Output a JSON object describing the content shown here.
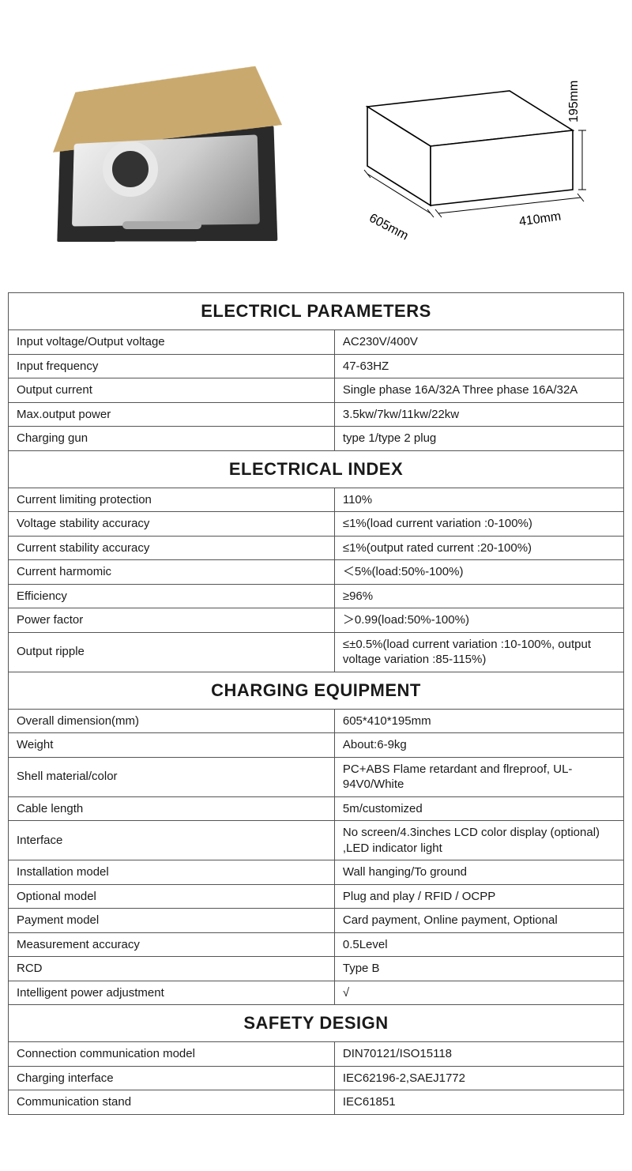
{
  "dimensions": {
    "width_label": "605mm",
    "depth_label": "410mm",
    "height_label": "195mm"
  },
  "diagram": {
    "stroke": "#000000",
    "stroke_width": 1.5,
    "fill": "#ffffff"
  },
  "sections": [
    {
      "title": "ELECTRICL PARAMETERS",
      "rows": [
        {
          "label": "Input voltage/Output voltage",
          "value": "AC230V/400V"
        },
        {
          "label": "Input frequency",
          "value": "47-63HZ"
        },
        {
          "label": "Output current",
          "value": "Single phase 16A/32A   Three phase 16A/32A"
        },
        {
          "label": "Max.output power",
          "value": "3.5kw/7kw/11kw/22kw"
        },
        {
          "label": "Charging gun",
          "value": "type 1/type 2 plug"
        }
      ]
    },
    {
      "title": "ELECTRICAL INDEX",
      "rows": [
        {
          "label": "Current limiting protection",
          "value": "110%"
        },
        {
          "label": "Voltage stability accuracy",
          "value": "≤1%(load current variation :0-100%)"
        },
        {
          "label": "Current stability accuracy",
          "value": "≤1%(output rated current :20-100%)"
        },
        {
          "label": "Current harmomic",
          "value": "＜5%(load:50%-100%)"
        },
        {
          "label": "Efficiency",
          "value": "≥96%"
        },
        {
          "label": "Power factor",
          "value": "＞0.99(load:50%-100%)"
        },
        {
          "label": "Output ripple",
          "value": "≤±0.5%(load current variation :10-100%, output voltage variation :85-115%)"
        }
      ]
    },
    {
      "title": "CHARGING EQUIPMENT",
      "rows": [
        {
          "label": "Overall dimension(mm)",
          "value": "605*410*195mm"
        },
        {
          "label": "Weight",
          "value": "About:6-9kg"
        },
        {
          "label": "Shell material/color",
          "value": "PC+ABS Flame retardant and flreproof, UL-94V0/White"
        },
        {
          "label": "Cable length",
          "value": "5m/customized"
        },
        {
          "label": "Interface",
          "value": "No screen/4.3inches LCD color display (optional) ,LED indicator light"
        },
        {
          "label": "Installation model",
          "value": "Wall hanging/To ground"
        },
        {
          "label": "Optional model",
          "value": "Plug and play / RFID / OCPP"
        },
        {
          "label": "Payment model",
          "value": "Card payment, Online payment, Optional"
        },
        {
          "label": "Measurement accuracy",
          "value": "0.5Level"
        },
        {
          "label": "RCD",
          "value": "Type B"
        },
        {
          "label": "Intelligent power adjustment",
          "value": "√"
        }
      ]
    },
    {
      "title": "SAFETY DESIGN",
      "rows": [
        {
          "label": "Connection communication model",
          "value": "DIN70121/ISO15118"
        },
        {
          "label": "Charging interface",
          "value": "IEC62196-2,SAEJ1772"
        },
        {
          "label": "Communication stand",
          "value": "IEC61851"
        }
      ]
    }
  ]
}
